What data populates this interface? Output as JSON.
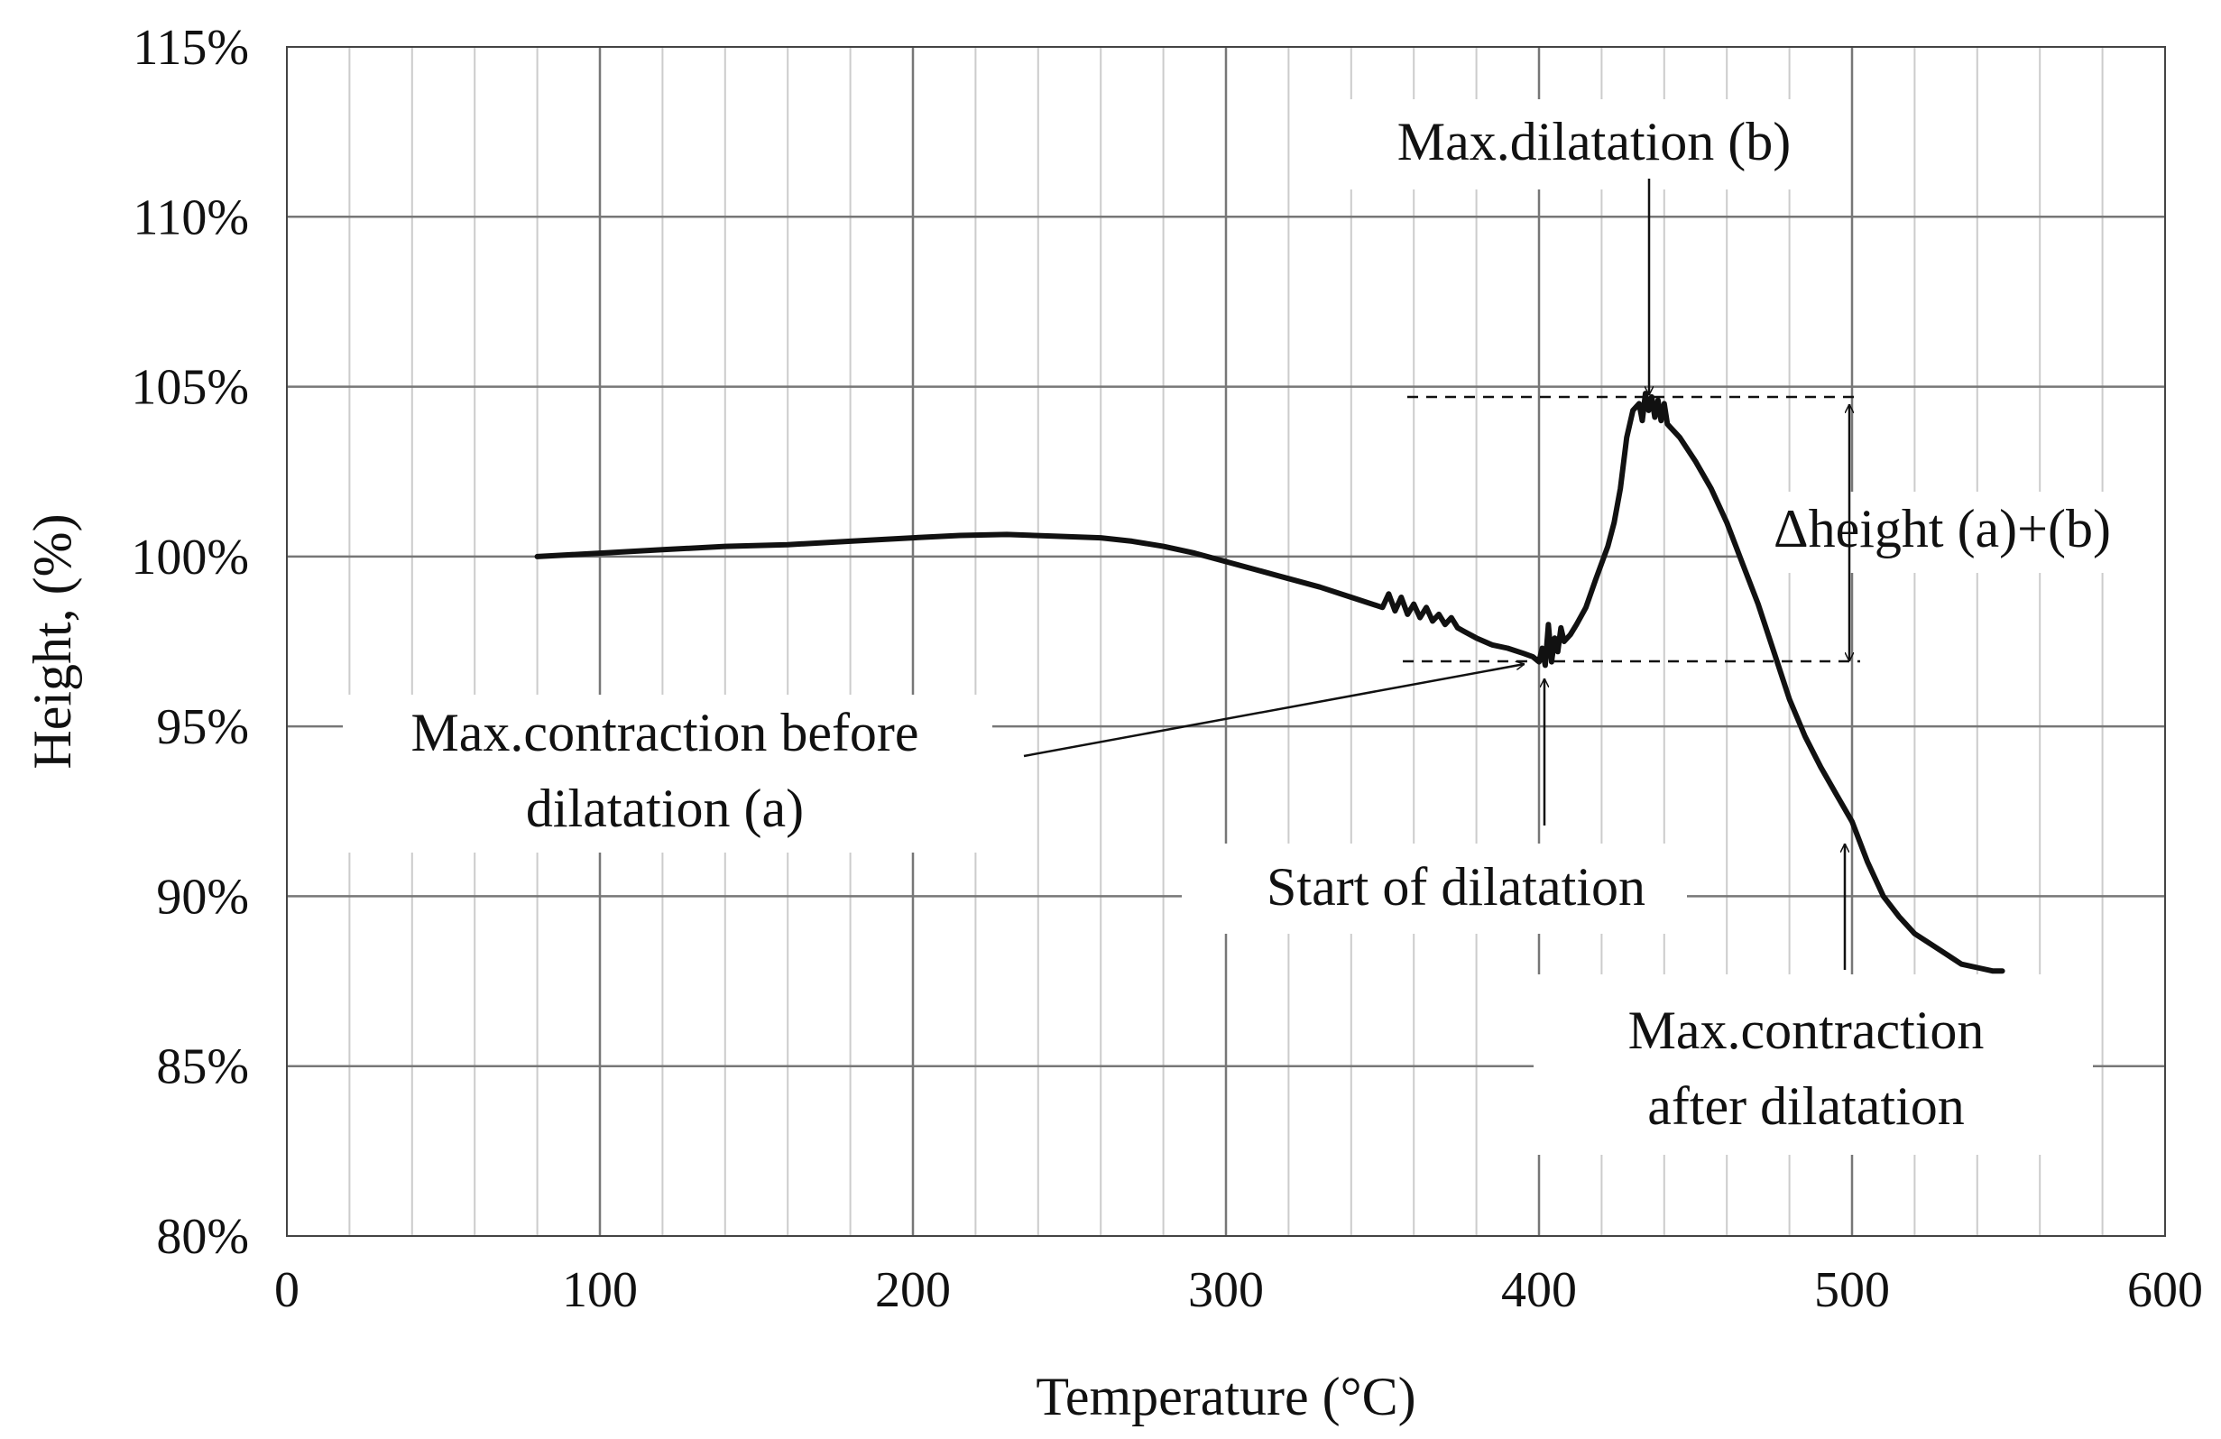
{
  "chart_data": {
    "type": "line",
    "title": "",
    "xlabel": "Temperature (°C)",
    "ylabel": "Height, (%)",
    "xlim": [
      0,
      600
    ],
    "ylim": [
      80,
      115
    ],
    "x_ticks": [
      0,
      100,
      200,
      300,
      400,
      500,
      600
    ],
    "x_tick_labels": [
      "0",
      "100",
      "200",
      "300",
      "400",
      "500",
      "600"
    ],
    "y_ticks": [
      80,
      85,
      90,
      95,
      100,
      105,
      110,
      115
    ],
    "y_tick_labels": [
      "80%",
      "85%",
      "90%",
      "95%",
      "100%",
      "105%",
      "110%",
      "115%"
    ],
    "x_minor_step": 20,
    "grid": true,
    "legend": "none",
    "series": [
      {
        "name": "Height",
        "x": [
          80,
          100,
          120,
          140,
          160,
          180,
          200,
          215,
          230,
          245,
          260,
          270,
          280,
          290,
          300,
          310,
          320,
          330,
          340,
          350,
          352,
          354,
          356,
          358,
          360,
          362,
          364,
          366,
          368,
          370,
          372,
          374,
          376,
          380,
          385,
          390,
          395,
          398,
          400,
          401,
          402,
          403,
          404,
          405,
          406,
          407,
          408,
          410,
          412,
          415,
          418,
          420,
          422,
          424,
          426,
          428,
          430,
          432,
          433,
          434,
          435,
          436,
          437,
          438,
          439,
          440,
          441,
          442,
          445,
          450,
          455,
          460,
          465,
          470,
          475,
          480,
          485,
          490,
          495,
          500,
          505,
          510,
          515,
          520,
          525,
          530,
          535,
          540,
          545,
          548
        ],
        "y": [
          100.0,
          100.1,
          100.2,
          100.3,
          100.35,
          100.45,
          100.55,
          100.62,
          100.65,
          100.6,
          100.55,
          100.45,
          100.3,
          100.1,
          99.85,
          99.6,
          99.35,
          99.1,
          98.8,
          98.5,
          98.9,
          98.4,
          98.8,
          98.3,
          98.6,
          98.2,
          98.5,
          98.1,
          98.3,
          98.0,
          98.2,
          97.9,
          97.8,
          97.6,
          97.4,
          97.3,
          97.15,
          97.05,
          96.9,
          97.3,
          96.8,
          98.0,
          96.9,
          97.6,
          97.2,
          97.9,
          97.5,
          97.7,
          98.0,
          98.5,
          99.3,
          99.8,
          100.3,
          101.0,
          102.0,
          103.5,
          104.3,
          104.5,
          104.0,
          104.8,
          104.3,
          104.7,
          104.1,
          104.6,
          104.0,
          104.5,
          103.9,
          103.8,
          103.5,
          102.8,
          102.0,
          101.0,
          99.8,
          98.6,
          97.2,
          95.8,
          94.7,
          93.8,
          93.0,
          92.2,
          91.0,
          90.0,
          89.4,
          88.9,
          88.6,
          88.3,
          88.0,
          87.9,
          87.8,
          87.8
        ]
      }
    ],
    "annotations": [
      {
        "id": "max-dilatation",
        "text": "Max.dilatation (b)"
      },
      {
        "id": "max-contraction-before",
        "lines": [
          "Max.contraction before",
          "dilatation (a)"
        ]
      },
      {
        "id": "start-of-dilatation",
        "text": "Start of dilatation"
      },
      {
        "id": "delta-height",
        "text": "Δheight (a)+(b)"
      },
      {
        "id": "max-contraction-after",
        "lines": [
          "Max.contraction",
          "after dilatation"
        ]
      }
    ]
  }
}
